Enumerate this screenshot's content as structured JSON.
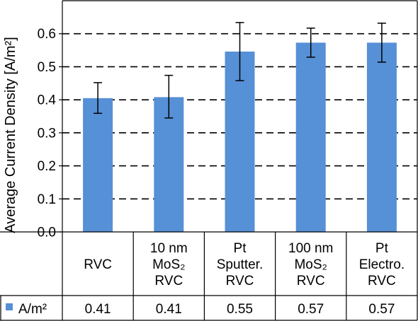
{
  "chart_data": {
    "type": "bar",
    "ylabel": "Average Current Density [A/m²]",
    "ylim": [
      0,
      0.7
    ],
    "yticks": [
      0.0,
      0.1,
      0.2,
      0.3,
      0.4,
      0.5,
      0.6
    ],
    "ytick_labels": [
      "0.0",
      "0.1",
      "0.2",
      "0.3",
      "0.4",
      "0.5",
      "0.6"
    ],
    "grid": "dashed horizontal",
    "categories": [
      [
        "RVC"
      ],
      [
        "10 nm",
        "MoS₂",
        "RVC"
      ],
      [
        "Pt",
        "Sputter.",
        "RVC"
      ],
      [
        "100 nm",
        "MoS₂",
        "RVC"
      ],
      [
        "Pt",
        "Electro.",
        "RVC"
      ]
    ],
    "series": [
      {
        "name": "A/m²",
        "color": "#5690d6",
        "values": [
          0.405,
          0.408,
          0.546,
          0.573,
          0.573
        ],
        "error_low": [
          0.359,
          0.345,
          0.458,
          0.529,
          0.514
        ],
        "error_high": [
          0.452,
          0.474,
          0.634,
          0.617,
          0.632
        ],
        "value_labels": [
          "0.41",
          "0.41",
          "0.55",
          "0.57",
          "0.57"
        ]
      }
    ],
    "legend": "data-table"
  }
}
